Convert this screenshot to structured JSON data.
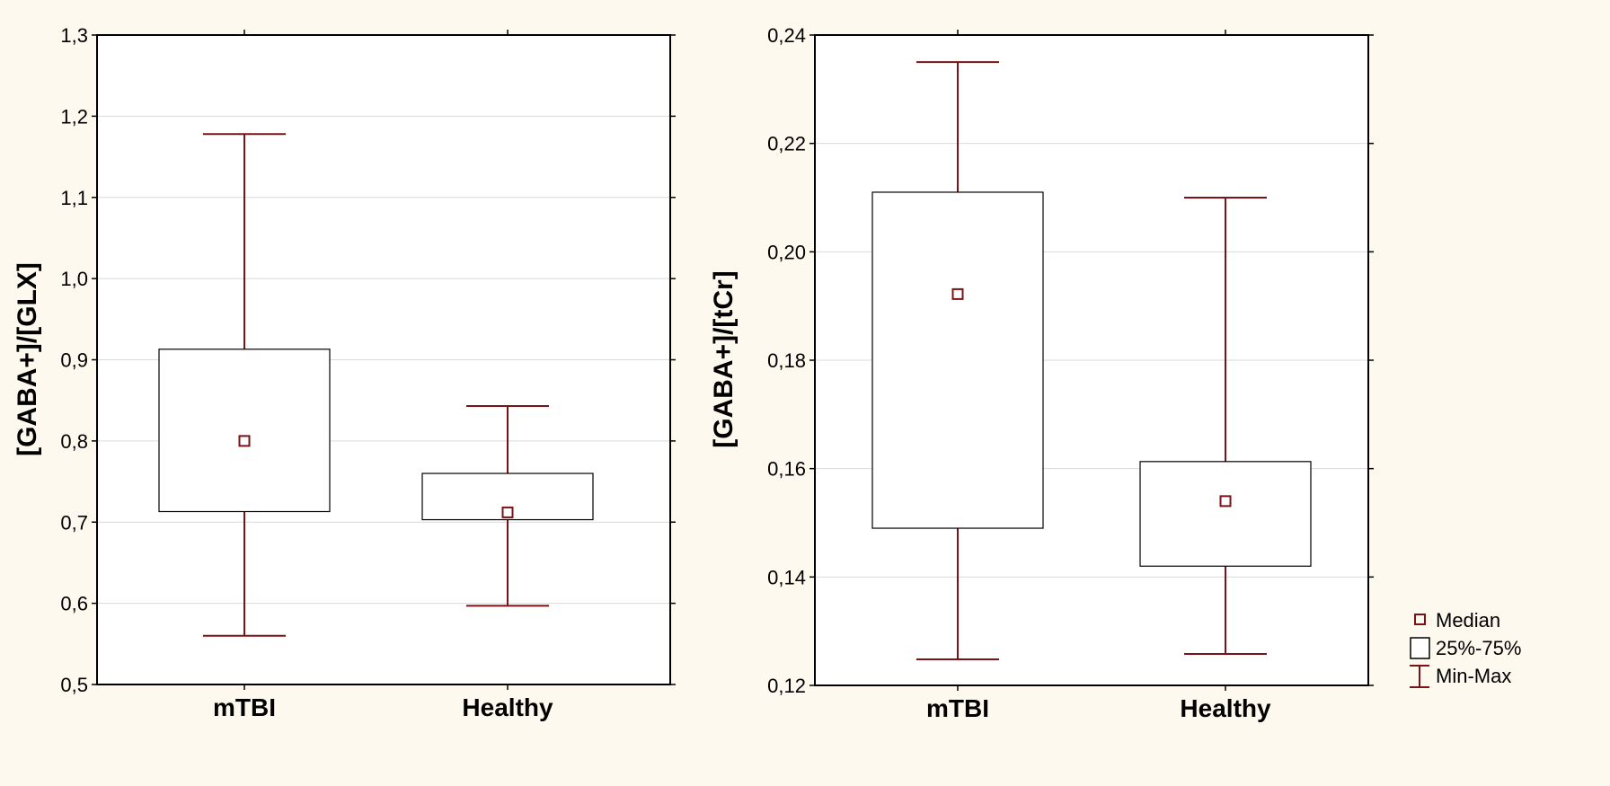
{
  "colors": {
    "background": "#fef9ee",
    "whisker": "#7a1216",
    "box": "#000000",
    "grid": "#d9d9d9",
    "axis": "#000000"
  },
  "legend": {
    "median_label": "Median",
    "box_label": "25%-75%",
    "range_label": "Min-Max"
  },
  "chart_data": [
    {
      "type": "box",
      "ylabel": "[GABA+]/[GLX]",
      "ylim": [
        0.5,
        1.3
      ],
      "ytick_values": [
        0.5,
        0.6,
        0.7,
        0.8,
        0.9,
        1.0,
        1.1,
        1.2,
        1.3
      ],
      "ytick_labels": [
        "0,5",
        "0,6",
        "0,7",
        "0,8",
        "0,9",
        "1,0",
        "1,1",
        "1,2",
        "1,3"
      ],
      "grid": true,
      "categories": [
        "mTBI",
        "Healthy"
      ],
      "series": [
        {
          "category": "mTBI",
          "min": 0.56,
          "q1": 0.713,
          "median": 0.8,
          "q3": 0.913,
          "max": 1.178
        },
        {
          "category": "Healthy",
          "min": 0.597,
          "q1": 0.703,
          "median": 0.712,
          "q3": 0.76,
          "max": 0.843
        }
      ]
    },
    {
      "type": "box",
      "ylabel": "[GABA+]/[tCr]",
      "ylim": [
        0.12,
        0.24
      ],
      "ytick_values": [
        0.12,
        0.14,
        0.16,
        0.18,
        0.2,
        0.22,
        0.24
      ],
      "ytick_labels": [
        "0,12",
        "0,14",
        "0,16",
        "0,18",
        "0,20",
        "0,22",
        "0,24"
      ],
      "grid": true,
      "categories": [
        "mTBI",
        "Healthy"
      ],
      "series": [
        {
          "category": "mTBI",
          "min": 0.1248,
          "q1": 0.149,
          "median": 0.1922,
          "q3": 0.211,
          "max": 0.235
        },
        {
          "category": "Healthy",
          "min": 0.1258,
          "q1": 0.142,
          "median": 0.154,
          "q3": 0.1613,
          "max": 0.21
        }
      ]
    }
  ]
}
